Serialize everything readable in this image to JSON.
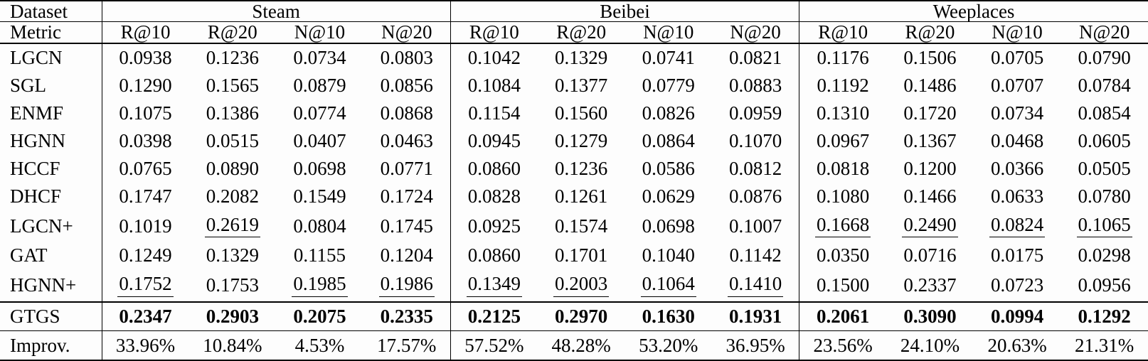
{
  "table": {
    "corner": {
      "dataset_label": "Dataset",
      "metric_label": "Metric"
    },
    "groups": [
      {
        "name": "Steam"
      },
      {
        "name": "Beibei"
      },
      {
        "name": "Weeplaces"
      }
    ],
    "metrics": [
      "R@10",
      "R@20",
      "N@10",
      "N@20"
    ],
    "rows": [
      {
        "method": "LGCN",
        "values": [
          "0.0938",
          "0.1236",
          "0.0734",
          "0.0803",
          "0.1042",
          "0.1329",
          "0.0741",
          "0.0821",
          "0.1176",
          "0.1506",
          "0.0705",
          "0.0790"
        ]
      },
      {
        "method": "SGL",
        "values": [
          "0.1290",
          "0.1565",
          "0.0879",
          "0.0856",
          "0.1084",
          "0.1377",
          "0.0779",
          "0.0883",
          "0.1192",
          "0.1486",
          "0.0707",
          "0.0784"
        ]
      },
      {
        "method": "ENMF",
        "values": [
          "0.1075",
          "0.1386",
          "0.0774",
          "0.0868",
          "0.1154",
          "0.1560",
          "0.0826",
          "0.0959",
          "0.1310",
          "0.1720",
          "0.0734",
          "0.0854"
        ]
      },
      {
        "method": "HGNN",
        "values": [
          "0.0398",
          "0.0515",
          "0.0407",
          "0.0463",
          "0.0945",
          "0.1279",
          "0.0864",
          "0.1070",
          "0.0967",
          "0.1367",
          "0.0468",
          "0.0605"
        ]
      },
      {
        "method": "HCCF",
        "values": [
          "0.0765",
          "0.0890",
          "0.0698",
          "0.0771",
          "0.0860",
          "0.1236",
          "0.0586",
          "0.0812",
          "0.0818",
          "0.1200",
          "0.0366",
          "0.0505"
        ]
      },
      {
        "method": "DHCF",
        "values": [
          "0.1747",
          "0.2082",
          "0.1549",
          "0.1724",
          "0.0828",
          "0.1261",
          "0.0629",
          "0.0876",
          "0.1080",
          "0.1466",
          "0.0633",
          "0.0780"
        ]
      },
      {
        "method": "LGCN+",
        "values": [
          "0.1019",
          "0.2619",
          "0.0804",
          "0.1745",
          "0.0925",
          "0.1574",
          "0.0698",
          "0.1007",
          "0.1668",
          "0.2490",
          "0.0824",
          "0.1065"
        ],
        "underline": [
          1,
          8,
          9,
          10,
          11
        ]
      },
      {
        "method": "GAT",
        "values": [
          "0.1249",
          "0.1329",
          "0.1155",
          "0.1204",
          "0.0860",
          "0.1701",
          "0.1040",
          "0.1142",
          "0.0350",
          "0.0716",
          "0.0175",
          "0.0298"
        ]
      },
      {
        "method": "HGNN+",
        "values": [
          "0.1752",
          "0.1753",
          "0.1985",
          "0.1986",
          "0.1349",
          "0.2003",
          "0.1064",
          "0.1410",
          "0.1500",
          "0.2337",
          "0.0723",
          "0.0956"
        ],
        "underline": [
          0,
          2,
          3,
          4,
          5,
          6,
          7
        ]
      },
      {
        "method": "GTGS",
        "variant": "best",
        "values": [
          "0.2347",
          "0.2903",
          "0.2075",
          "0.2335",
          "0.2125",
          "0.2970",
          "0.1630",
          "0.1931",
          "0.2061",
          "0.3090",
          "0.0994",
          "0.1292"
        ]
      },
      {
        "method": "Improv.",
        "variant": "improvement",
        "values": [
          "33.96%",
          "10.84%",
          "4.53%",
          "17.57%",
          "57.52%",
          "48.28%",
          "53.20%",
          "36.95%",
          "23.56%",
          "24.10%",
          "20.63%",
          "21.31%"
        ]
      }
    ]
  }
}
